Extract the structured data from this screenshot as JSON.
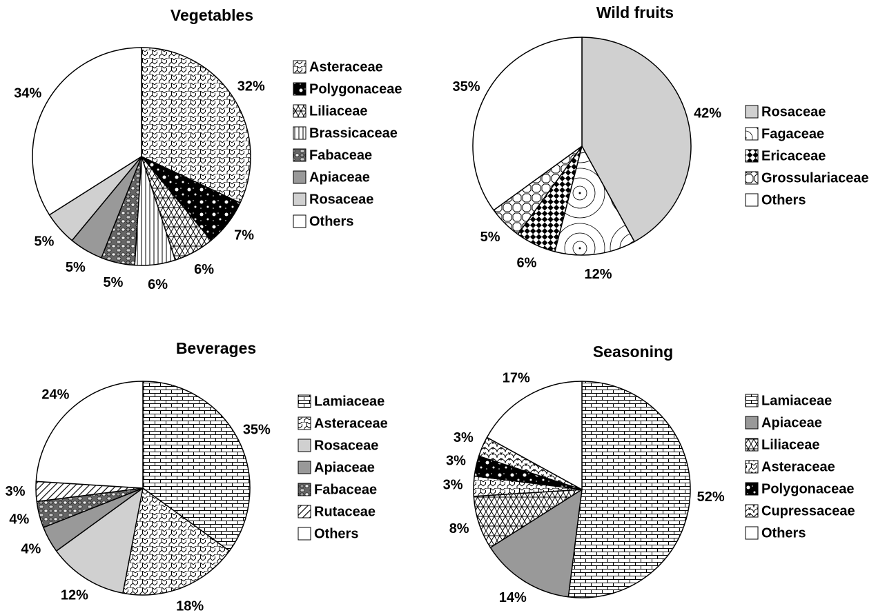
{
  "chart_data": [
    {
      "type": "pie",
      "title": "Vegetables",
      "categories": [
        "Asteraceae",
        "Polygonaceae",
        "Liliaceae",
        "Brassicaceae",
        "Fabaceae",
        "Apiaceae",
        "Rosaceae",
        "Others"
      ],
      "values": [
        32,
        7,
        6,
        6,
        5,
        5,
        5,
        34
      ],
      "value_labels": [
        "32%",
        "7%",
        "6%",
        "6%",
        "5%",
        "5%",
        "5%",
        "34%"
      ],
      "patterns": [
        "hex",
        "speckle",
        "lattice",
        "vlines",
        "cobble",
        "gray",
        "lightgray",
        "white"
      ]
    },
    {
      "type": "pie",
      "title": "Wild fruits",
      "categories": [
        "Rosaceae",
        "Fagaceae",
        "Ericaceae",
        "Grossulariaceae",
        "Others"
      ],
      "values": [
        42,
        12,
        6,
        5,
        35
      ],
      "value_labels": [
        "42%",
        "12%",
        "6%",
        "5%",
        "35%"
      ],
      "patterns": [
        "lightgray",
        "rings",
        "weave",
        "octagon",
        "white"
      ]
    },
    {
      "type": "pie",
      "title": "Beverages",
      "categories": [
        "Lamiaceae",
        "Asteraceae",
        "Rosaceae",
        "Apiaceae",
        "Fabaceae",
        "Rutaceae",
        "Others"
      ],
      "values": [
        35,
        18,
        12,
        4,
        4,
        3,
        24
      ],
      "value_labels": [
        "35%",
        "18%",
        "12%",
        "4%",
        "4%",
        "3%",
        "24%"
      ],
      "patterns": [
        "brick",
        "hex",
        "lightgray",
        "gray",
        "cobble",
        "diag",
        "white"
      ]
    },
    {
      "type": "pie",
      "title": "Seasoning",
      "categories": [
        "Lamiaceae",
        "Apiaceae",
        "Liliaceae",
        "Asteraceae",
        "Polygonaceae",
        "Cupressaceae",
        "Others"
      ],
      "values": [
        52,
        14,
        8,
        3,
        3,
        3,
        17
      ],
      "value_labels": [
        "52%",
        "14%",
        "8%",
        "3%",
        "3%",
        "3%",
        "17%"
      ],
      "patterns": [
        "brick",
        "gray",
        "lattice",
        "hex",
        "speckle",
        "scales",
        "white"
      ]
    }
  ]
}
